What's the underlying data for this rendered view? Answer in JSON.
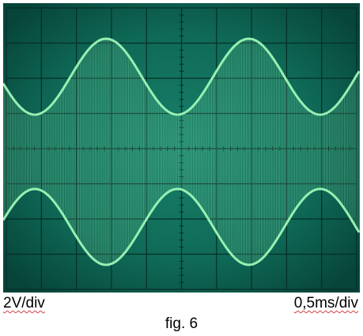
{
  "figure": {
    "volt_scale": "2V/div",
    "time_scale": "0,5ms/div",
    "caption": "fig. 6"
  },
  "colors": {
    "screen_background": "#0b5548",
    "trace": "#9cf7b6",
    "graticule": "#062e28"
  },
  "display": {
    "type": "oscilloscope-screenshot",
    "graticule_divisions_x": 10,
    "graticule_divisions_y": 8,
    "waveform": "amplitude-modulated sine",
    "envelope_cycles_visible": 2.5
  }
}
